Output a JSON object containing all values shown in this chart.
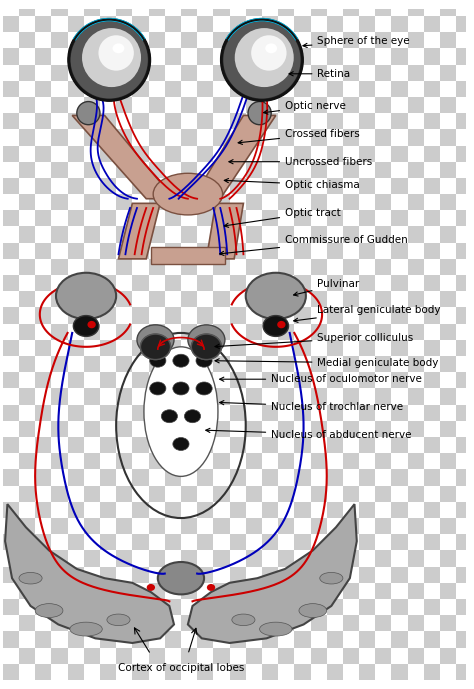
{
  "labels": {
    "sphere_of_eye": "Sphere of the eye",
    "retina": "Retina",
    "optic_nerve": "Optic nerve",
    "crossed_fibers": "Crossed fibers",
    "uncrossed_fibers": "Uncrossed fibers",
    "optic_chiasma": "Optic chiasma",
    "optic_tract": "Optic tract",
    "commissure_gudden": "Commissure of Gudden",
    "pulvinar": "Pulvinar",
    "lateral_geniculate": "Lateral geniculate body",
    "superior_colliculus": "Superior colliculus",
    "medial_geniculate": "Medial geniculate body",
    "nucleus_oculomotor": "Nucleus of oculomotor nerve",
    "nucleus_trochlar": "Nucleus of trochlar nerve",
    "nucleus_abducent": "Nucleus of abducent nerve",
    "cortex_occipital": "Cortex of occipital lobes"
  },
  "colors": {
    "red": "#cc0000",
    "blue": "#0000bb",
    "cyan": "#00cccc",
    "nerve_fill": "#c8a090",
    "nerve_edge": "#7a5040",
    "eye_outer": "#222222",
    "eye_dark": "#111111",
    "eye_gray": "#666666",
    "eye_white": "#e8e8e8",
    "eye_shine": "#ffffff",
    "thal_fill": "#888888",
    "thal_edge": "#333333",
    "brain_fill": "#aaaaaa",
    "brain_edge": "#444444",
    "black": "#000000",
    "white": "#ffffff",
    "checker1": "#cccccc",
    "checker2": "#ffffff"
  }
}
